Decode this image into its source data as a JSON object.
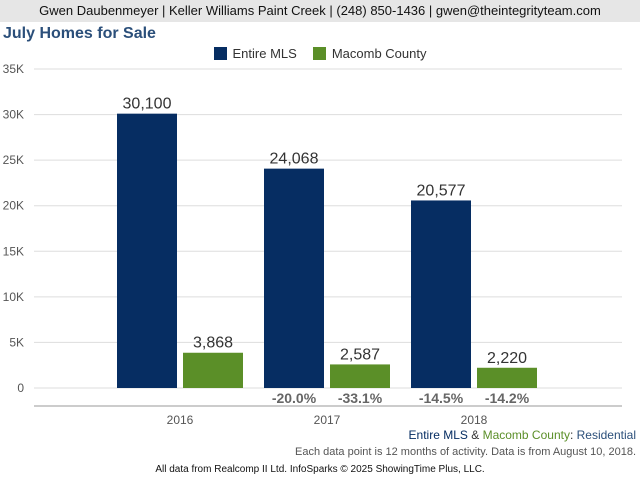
{
  "header": {
    "agent_line": "Gwen Daubenmeyer | Keller Williams Paint Creek | (248) 850-1436 | gwen@theintegrityteam.com"
  },
  "colors": {
    "entire_mls": "#062d62",
    "macomb": "#5b8f28",
    "title": "#2b4f7a"
  },
  "chart_data": {
    "type": "bar",
    "title": "July Homes for Sale",
    "categories": [
      "2016",
      "2017",
      "2018"
    ],
    "series": [
      {
        "name": "Entire MLS",
        "values": [
          30100,
          24068,
          20577
        ],
        "labels": [
          "30,100",
          "24,068",
          "20,577"
        ],
        "changes": [
          "",
          "-20.0%",
          "-14.5%"
        ]
      },
      {
        "name": "Macomb County",
        "values": [
          3868,
          2587,
          2220
        ],
        "labels": [
          "3,868",
          "2,587",
          "2,220"
        ],
        "changes": [
          "",
          "-33.1%",
          "-14.2%"
        ]
      }
    ],
    "ylim": [
      0,
      35000
    ],
    "yticks": [
      0,
      5000,
      10000,
      15000,
      20000,
      25000,
      30000,
      35000
    ],
    "ytick_labels": [
      "0",
      "5K",
      "10K",
      "15K",
      "20K",
      "25K",
      "30K",
      "35K"
    ],
    "grid": true,
    "legend_position": "top-center"
  },
  "caption": {
    "series_a": "Entire MLS",
    "amp": " & ",
    "series_b": "Macomb County",
    "colon": ": ",
    "property_type": "Residential",
    "note": "Each data point is 12 months of activity. Data is from August 10, 2018."
  },
  "footer": {
    "text": "All data from Realcomp II Ltd. InfoSparks © 2025 ShowingTime Plus, LLC."
  }
}
